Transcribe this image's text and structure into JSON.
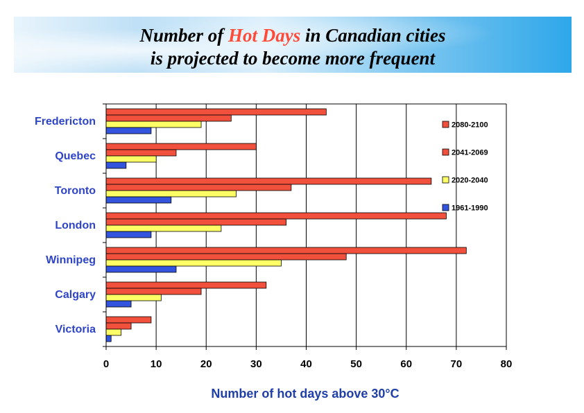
{
  "header": {
    "title_line1_pre": "Number of ",
    "title_line1_highlight": "Hot Days",
    "title_line1_post": " in Canadian cities",
    "title_line2": "is projected to become more frequent"
  },
  "colors": {
    "period_2080_2100": "#f0503c",
    "period_2041_2069": "#f0503c",
    "period_2020_2040": "#ffff66",
    "period_1961_1990": "#3355dd",
    "city_label": "#2e44c8",
    "axis_label": "#1f3ea8"
  },
  "chart_data": {
    "type": "bar",
    "orientation": "horizontal",
    "categories": [
      "Fredericton",
      "Quebec",
      "Toronto",
      "London",
      "Winnipeg",
      "Calgary",
      "Victoria"
    ],
    "series": [
      {
        "name": "2080-2100",
        "values": [
          44,
          30,
          65,
          68,
          72,
          32,
          9
        ]
      },
      {
        "name": "2041-2069",
        "values": [
          25,
          14,
          37,
          36,
          48,
          19,
          5
        ]
      },
      {
        "name": "2020-2040",
        "values": [
          19,
          10,
          26,
          23,
          35,
          11,
          3
        ]
      },
      {
        "name": "1961-1990",
        "values": [
          9,
          4,
          13,
          9,
          14,
          5,
          1
        ]
      }
    ],
    "xlabel": "Number of hot days above 30°C",
    "xlim": [
      0,
      80
    ],
    "xticks": [
      "0",
      "10",
      "20",
      "30",
      "40",
      "50",
      "60",
      "70",
      "80"
    ],
    "grid": "vertical",
    "legend_position": "right-top"
  }
}
